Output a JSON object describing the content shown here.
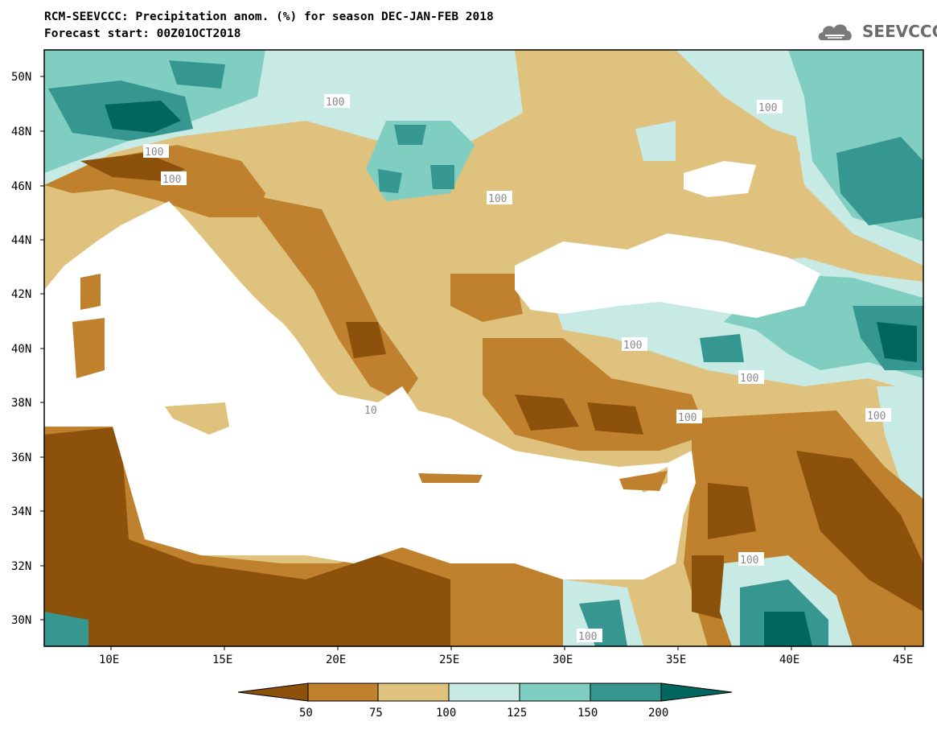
{
  "header": {
    "title_line1": "RCM-SEEVCCC: Precipitation anom. (%) for season DEC-JAN-FEB 2018",
    "title_line2": "Forecast start: 00Z01OCT2018",
    "logo_text": "SEEVCCC"
  },
  "map": {
    "lat_labels": [
      "50N",
      "48N",
      "46N",
      "44N",
      "42N",
      "40N",
      "38N",
      "36N",
      "34N",
      "32N",
      "30N"
    ],
    "lon_labels": [
      "10E",
      "15E",
      "20E",
      "25E",
      "30E",
      "35E",
      "40E",
      "45E"
    ],
    "contour_labels": [
      "100",
      "100",
      "100",
      "100",
      "100",
      "100",
      "100",
      "100",
      "100",
      "100",
      "100",
      "10"
    ]
  },
  "legend": {
    "ticks": [
      "50",
      "75",
      "100",
      "125",
      "150",
      "200"
    ],
    "colors": [
      "#8c510a",
      "#bf812d",
      "#dfc27d",
      "#c7eae5",
      "#80cdc1",
      "#35978f",
      "#01665e"
    ]
  }
}
